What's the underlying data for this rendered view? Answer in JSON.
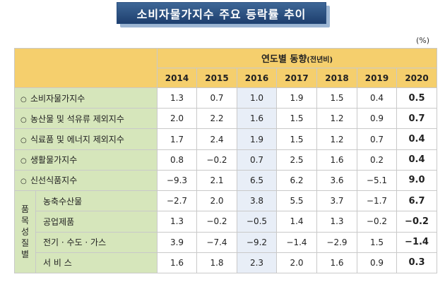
{
  "title": "소비자물가지수 주요 등락률 추이",
  "unit": "(%)",
  "header": {
    "main": "연도별 동향",
    "main_sub": "(전년비)",
    "years": [
      "2014",
      "2015",
      "2016",
      "2017",
      "2018",
      "2019",
      "2020"
    ]
  },
  "group_label_chars": [
    "품",
    "목",
    "성",
    "질",
    "별"
  ],
  "rows": [
    {
      "label": "소비자물가지수",
      "values": [
        "1.3",
        "0.7",
        "1.0",
        "1.9",
        "1.5",
        "0.4",
        "0.5"
      ]
    },
    {
      "label": "농산물 및 석유류 제외지수",
      "values": [
        "2.0",
        "2.2",
        "1.6",
        "1.5",
        "1.2",
        "0.9",
        "0.7"
      ]
    },
    {
      "label": "식료품 및 에너지 제외지수",
      "values": [
        "1.7",
        "2.4",
        "1.9",
        "1.5",
        "1.2",
        "0.7",
        "0.4"
      ]
    },
    {
      "label": "생활물가지수",
      "values": [
        "0.8",
        "−0.2",
        "0.7",
        "2.5",
        "1.6",
        "0.2",
        "0.4"
      ]
    },
    {
      "label": "신선식품지수",
      "values": [
        "−9.3",
        "2.1",
        "6.5",
        "6.2",
        "3.6",
        "−5.1",
        "9.0"
      ]
    }
  ],
  "group_rows": [
    {
      "label": "농축수산물",
      "values": [
        "−2.7",
        "2.0",
        "3.8",
        "5.5",
        "3.7",
        "−1.7",
        "6.7"
      ]
    },
    {
      "label": "공업제품",
      "values": [
        "1.3",
        "−0.2",
        "−0.5",
        "1.4",
        "1.3",
        "−0.2",
        "−0.2"
      ]
    },
    {
      "label": "전기 · 수도 · 가스",
      "values": [
        "3.9",
        "−7.4",
        "−9.2",
        "−1.4",
        "−2.9",
        "1.5",
        "−1.4"
      ]
    },
    {
      "label": "서 비 스",
      "values": [
        "1.6",
        "1.8",
        "2.3",
        "2.0",
        "1.6",
        "0.9",
        "0.3"
      ]
    }
  ],
  "bullet": "○"
}
